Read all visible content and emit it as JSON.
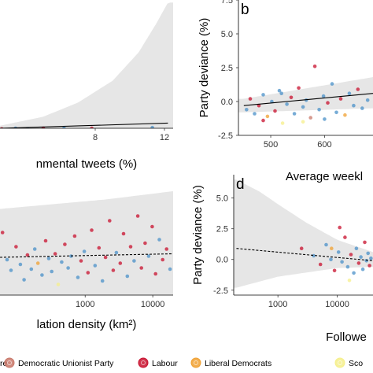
{
  "legend": {
    "items": [
      {
        "label": "re",
        "color": "#4a90c8"
      },
      {
        "label": "Democratic Unionist Party",
        "color": "#c9786a"
      },
      {
        "label": "Labour",
        "color": "#c8102e"
      },
      {
        "label": "Liberal Democrats",
        "color": "#f0a030"
      },
      {
        "label": "Sco",
        "color": "#f5ef8a"
      }
    ]
  },
  "chart_data": [
    {
      "type": "scatter",
      "panel_label": "",
      "xlabel": "nmental tweets (%)",
      "ylabel": "",
      "x_ticks": [
        8,
        12
      ],
      "y_ticks": [],
      "xlim": [
        2.5,
        12.5
      ],
      "ylim": [
        -2.5,
        7.5
      ],
      "fit_line": {
        "style": "solid",
        "x": [
          2.5,
          12.2
        ],
        "y": [
          -2.5,
          -2.1
        ]
      },
      "band_upper": {
        "x": [
          2.5,
          5,
          7,
          9,
          10.5,
          11.5,
          12.2
        ],
        "y": [
          -2.3,
          -1.6,
          -0.5,
          1.2,
          3.4,
          5.6,
          7.3
        ]
      },
      "band_lower": {
        "x": [
          2.5,
          12.2
        ],
        "y": [
          -2.6,
          -2.5
        ]
      },
      "points": [
        {
          "x": 2.6,
          "y": -2.55,
          "party": "Labour"
        },
        {
          "x": 3.4,
          "y": -2.5,
          "party": "re"
        },
        {
          "x": 4.1,
          "y": -2.55,
          "party": "re"
        },
        {
          "x": 5.0,
          "y": -2.5,
          "party": "Labour"
        },
        {
          "x": 6.2,
          "y": -2.5,
          "party": "re"
        },
        {
          "x": 7.8,
          "y": -2.5,
          "party": "Labour"
        },
        {
          "x": 11.3,
          "y": -2.45,
          "party": "re"
        }
      ]
    },
    {
      "type": "scatter",
      "panel_label": "b",
      "xlabel": "Average weekl",
      "ylabel": "Party deviance (%)",
      "x_ticks": [
        500,
        600
      ],
      "y_ticks": [
        -2.5,
        0.0,
        2.5,
        5.0,
        7.5
      ],
      "xlim": [
        440,
        690
      ],
      "ylim": [
        -2.5,
        7.5
      ],
      "fit_line": {
        "style": "solid",
        "x": [
          450,
          690
        ],
        "y": [
          -0.3,
          0.6
        ]
      },
      "band_upper": {
        "x": [
          450,
          690
        ],
        "y": [
          0.2,
          1.8
        ]
      },
      "band_lower": {
        "x": [
          450,
          690
        ],
        "y": [
          -0.8,
          -0.5
        ]
      },
      "points": [
        {
          "x": 455,
          "y": -0.6,
          "party": "re"
        },
        {
          "x": 462,
          "y": 0.2,
          "party": "Labour"
        },
        {
          "x": 470,
          "y": -0.9,
          "party": "re"
        },
        {
          "x": 478,
          "y": -0.3,
          "party": "Labour"
        },
        {
          "x": 486,
          "y": 0.5,
          "party": "re"
        },
        {
          "x": 494,
          "y": -1.1,
          "party": "Liberal Democrats"
        },
        {
          "x": 502,
          "y": 0.0,
          "party": "re"
        },
        {
          "x": 508,
          "y": -0.7,
          "party": "Labour"
        },
        {
          "x": 516,
          "y": 0.8,
          "party": "re"
        },
        {
          "x": 522,
          "y": -1.6,
          "party": "Sco"
        },
        {
          "x": 530,
          "y": -0.2,
          "party": "re"
        },
        {
          "x": 538,
          "y": 0.3,
          "party": "Labour"
        },
        {
          "x": 544,
          "y": -0.9,
          "party": "re"
        },
        {
          "x": 552,
          "y": 1.0,
          "party": "Labour"
        },
        {
          "x": 560,
          "y": -0.4,
          "party": "re"
        },
        {
          "x": 566,
          "y": 0.1,
          "party": "re"
        },
        {
          "x": 574,
          "y": -1.2,
          "party": "Democratic Unionist Party"
        },
        {
          "x": 582,
          "y": 2.6,
          "party": "Labour"
        },
        {
          "x": 590,
          "y": -0.6,
          "party": "re"
        },
        {
          "x": 598,
          "y": 0.4,
          "party": "re"
        },
        {
          "x": 606,
          "y": -0.1,
          "party": "Labour"
        },
        {
          "x": 614,
          "y": 1.3,
          "party": "re"
        },
        {
          "x": 622,
          "y": -0.8,
          "party": "re"
        },
        {
          "x": 630,
          "y": 0.2,
          "party": "Labour"
        },
        {
          "x": 638,
          "y": -1.0,
          "party": "Liberal Democrats"
        },
        {
          "x": 646,
          "y": 0.6,
          "party": "re"
        },
        {
          "x": 654,
          "y": -0.3,
          "party": "re"
        },
        {
          "x": 662,
          "y": 0.9,
          "party": "Labour"
        },
        {
          "x": 670,
          "y": -0.5,
          "party": "re"
        },
        {
          "x": 680,
          "y": 0.1,
          "party": "re"
        },
        {
          "x": 486,
          "y": -1.4,
          "party": "Labour"
        },
        {
          "x": 560,
          "y": -1.5,
          "party": "Sco"
        },
        {
          "x": 600,
          "y": -1.3,
          "party": "re"
        },
        {
          "x": 520,
          "y": 0.6,
          "party": "re"
        }
      ]
    },
    {
      "type": "scatter",
      "panel_label": "",
      "xlabel": "lation density (km²)",
      "ylabel": "",
      "x_ticks": [
        1000,
        10000
      ],
      "y_ticks": [],
      "xscale": "log",
      "xlim": [
        55,
        20000
      ],
      "ylim": [
        -2.5,
        7.5
      ],
      "fit_line": {
        "style": "dashed",
        "x": [
          55,
          20000
        ],
        "y": [
          0.7,
          1.0
        ]
      },
      "band_upper": {
        "x": [
          55,
          2000,
          20000
        ],
        "y": [
          4.8,
          5.6,
          6.3
        ]
      },
      "band_lower": {
        "x": [
          55,
          20000
        ],
        "y": [
          -2.5,
          -2.5
        ]
      },
      "points": [
        {
          "x": 60,
          "y": 2.8,
          "party": "Labour"
        },
        {
          "x": 70,
          "y": 0.5,
          "party": "re"
        },
        {
          "x": 80,
          "y": -0.4,
          "party": "re"
        },
        {
          "x": 95,
          "y": 1.6,
          "party": "Labour"
        },
        {
          "x": 110,
          "y": 0.1,
          "party": "re"
        },
        {
          "x": 125,
          "y": -1.2,
          "party": "re"
        },
        {
          "x": 140,
          "y": 0.9,
          "party": "Labour"
        },
        {
          "x": 160,
          "y": -0.3,
          "party": "re"
        },
        {
          "x": 180,
          "y": 1.4,
          "party": "re"
        },
        {
          "x": 200,
          "y": 0.2,
          "party": "Liberal Democrats"
        },
        {
          "x": 230,
          "y": -0.8,
          "party": "re"
        },
        {
          "x": 260,
          "y": 2.1,
          "party": "Labour"
        },
        {
          "x": 290,
          "y": 0.6,
          "party": "re"
        },
        {
          "x": 320,
          "y": -0.5,
          "party": "re"
        },
        {
          "x": 360,
          "y": 1.0,
          "party": "Labour"
        },
        {
          "x": 400,
          "y": -1.6,
          "party": "Sco"
        },
        {
          "x": 450,
          "y": 0.3,
          "party": "re"
        },
        {
          "x": 500,
          "y": 1.8,
          "party": "Labour"
        },
        {
          "x": 560,
          "y": -0.2,
          "party": "re"
        },
        {
          "x": 620,
          "y": 0.8,
          "party": "re"
        },
        {
          "x": 700,
          "y": 2.5,
          "party": "Labour"
        },
        {
          "x": 780,
          "y": -1.0,
          "party": "re"
        },
        {
          "x": 870,
          "y": 0.4,
          "party": "Labour"
        },
        {
          "x": 970,
          "y": 1.2,
          "party": "re"
        },
        {
          "x": 1100,
          "y": -0.6,
          "party": "Labour"
        },
        {
          "x": 1250,
          "y": 3.0,
          "party": "Labour"
        },
        {
          "x": 1400,
          "y": 0.0,
          "party": "re"
        },
        {
          "x": 1600,
          "y": 1.5,
          "party": "Labour"
        },
        {
          "x": 1800,
          "y": -1.3,
          "party": "re"
        },
        {
          "x": 2000,
          "y": 0.7,
          "party": "Labour"
        },
        {
          "x": 2300,
          "y": 3.8,
          "party": "Labour"
        },
        {
          "x": 2600,
          "y": -0.4,
          "party": "Labour"
        },
        {
          "x": 2900,
          "y": 1.1,
          "party": "re"
        },
        {
          "x": 3300,
          "y": 0.2,
          "party": "Labour"
        },
        {
          "x": 3700,
          "y": 2.7,
          "party": "Labour"
        },
        {
          "x": 4200,
          "y": -0.9,
          "party": "re"
        },
        {
          "x": 4700,
          "y": 1.6,
          "party": "Labour"
        },
        {
          "x": 5300,
          "y": 0.4,
          "party": "re"
        },
        {
          "x": 6000,
          "y": 4.2,
          "party": "Labour"
        },
        {
          "x": 6800,
          "y": -0.2,
          "party": "Labour"
        },
        {
          "x": 7700,
          "y": 1.9,
          "party": "Labour"
        },
        {
          "x": 8700,
          "y": 0.8,
          "party": "re"
        },
        {
          "x": 9800,
          "y": 3.3,
          "party": "Labour"
        },
        {
          "x": 11000,
          "y": -0.7,
          "party": "Labour"
        },
        {
          "x": 12500,
          "y": 2.2,
          "party": "re"
        },
        {
          "x": 14000,
          "y": 0.5,
          "party": "Labour"
        },
        {
          "x": 16000,
          "y": 1.4,
          "party": "Labour"
        },
        {
          "x": 18000,
          "y": -0.3,
          "party": "re"
        }
      ]
    },
    {
      "type": "scatter",
      "panel_label": "d",
      "xlabel": "Followe",
      "ylabel": "Party deviance (%)",
      "x_ticks": [
        1000,
        10000
      ],
      "y_ticks": [
        -2.5,
        0.0,
        2.5,
        5.0
      ],
      "xscale": "log",
      "xlim": [
        180,
        40000
      ],
      "ylim": [
        -2.9,
        6.9
      ],
      "fit_line": {
        "style": "dashed",
        "x": [
          200,
          40000
        ],
        "y": [
          0.9,
          -0.1
        ]
      },
      "band_upper": {
        "x": [
          200,
          500,
          1000,
          3000,
          10000,
          40000
        ],
        "y": [
          6.5,
          5.5,
          4.5,
          3.0,
          1.6,
          0.6
        ]
      },
      "band_lower": {
        "x": [
          200,
          1000,
          10000,
          40000
        ],
        "y": [
          -2.3,
          -1.4,
          -0.7,
          -0.6
        ]
      },
      "points": [
        {
          "x": 2500,
          "y": 0.9,
          "party": "Labour"
        },
        {
          "x": 4000,
          "y": 0.3,
          "party": "re"
        },
        {
          "x": 5200,
          "y": -0.4,
          "party": "Labour"
        },
        {
          "x": 6500,
          "y": 1.2,
          "party": "re"
        },
        {
          "x": 7800,
          "y": 0.0,
          "party": "re"
        },
        {
          "x": 9000,
          "y": -0.9,
          "party": "Labour"
        },
        {
          "x": 10500,
          "y": 0.6,
          "party": "re"
        },
        {
          "x": 12000,
          "y": -0.2,
          "party": "re"
        },
        {
          "x": 13500,
          "y": 1.8,
          "party": "Labour"
        },
        {
          "x": 15000,
          "y": -0.6,
          "party": "re"
        },
        {
          "x": 17000,
          "y": 0.4,
          "party": "Labour"
        },
        {
          "x": 19000,
          "y": -1.1,
          "party": "re"
        },
        {
          "x": 21000,
          "y": 0.9,
          "party": "re"
        },
        {
          "x": 23000,
          "y": -0.3,
          "party": "Labour"
        },
        {
          "x": 25000,
          "y": 0.2,
          "party": "re"
        },
        {
          "x": 27000,
          "y": -0.8,
          "party": "re"
        },
        {
          "x": 29000,
          "y": 1.4,
          "party": "Labour"
        },
        {
          "x": 31000,
          "y": -0.1,
          "party": "re"
        },
        {
          "x": 33000,
          "y": 0.5,
          "party": "re"
        },
        {
          "x": 35000,
          "y": -0.5,
          "party": "Labour"
        },
        {
          "x": 37000,
          "y": 0.1,
          "party": "re"
        },
        {
          "x": 16000,
          "y": -1.7,
          "party": "Sco"
        },
        {
          "x": 11000,
          "y": 2.6,
          "party": "Labour"
        },
        {
          "x": 8000,
          "y": 0.9,
          "party": "Liberal Democrats"
        }
      ]
    }
  ]
}
